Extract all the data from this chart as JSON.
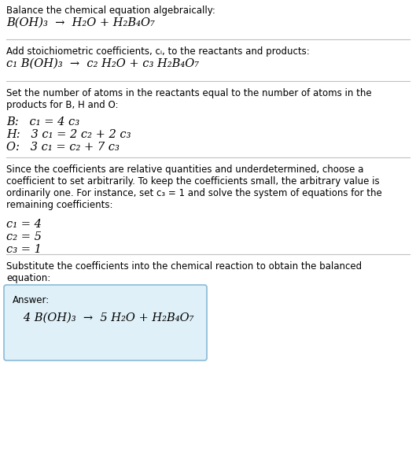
{
  "bg_color": "#ffffff",
  "text_color": "#000000",
  "line_color": "#c0c0c0",
  "answer_box_color": "#dff0f8",
  "answer_box_border": "#88bbd8",
  "section1_title": "Balance the chemical equation algebraically:",
  "section1_eq": "B(OH)₃  →  H₂O + H₂B₄O₇",
  "section2_title": "Add stoichiometric coefficients, cᵢ, to the reactants and products:",
  "section2_eq": "c₁ B(OH)₃  →  c₂ H₂O + c₃ H₂B₄O₇",
  "section3_title": "Set the number of atoms in the reactants equal to the number of atoms in the\nproducts for B, H and O:",
  "section3_lines": [
    "B:   c₁ = 4 c₃",
    "H:   3 c₁ = 2 c₂ + 2 c₃",
    "O:   3 c₁ = c₂ + 7 c₃"
  ],
  "section4_title": "Since the coefficients are relative quantities and underdetermined, choose a\ncoefficient to set arbitrarily. To keep the coefficients small, the arbitrary value is\nordinarily one. For instance, set c₃ = 1 and solve the system of equations for the\nremaining coefficients:",
  "section4_lines": [
    "c₁ = 4",
    "c₂ = 5",
    "c₃ = 1"
  ],
  "section5_title": "Substitute the coefficients into the chemical reaction to obtain the balanced\nequation:",
  "answer_label": "Answer:",
  "answer_eq": "   4 B(OH)₃  →  5 H₂O + H₂B₄O₇"
}
